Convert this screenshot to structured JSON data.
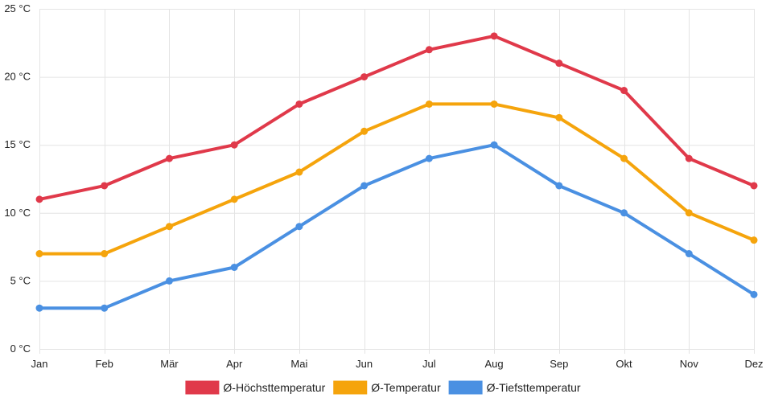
{
  "chart_data": {
    "type": "line",
    "title": "",
    "xlabel": "",
    "ylabel": "",
    "categories": [
      "Jan",
      "Feb",
      "Mär",
      "Apr",
      "Mai",
      "Jun",
      "Jul",
      "Aug",
      "Sep",
      "Okt",
      "Nov",
      "Dez"
    ],
    "ylim": [
      0,
      25
    ],
    "yticks": [
      0,
      5,
      10,
      15,
      20,
      25
    ],
    "y_unit": " °C",
    "grid": true,
    "legend_position": "bottom",
    "series": [
      {
        "name": "Ø-Höchsttemperatur",
        "color": "#e0394a",
        "values": [
          11,
          12,
          14,
          15,
          18,
          20,
          22,
          23,
          21,
          19,
          14,
          12
        ]
      },
      {
        "name": "Ø-Temperatur",
        "color": "#f5a40c",
        "values": [
          7,
          7,
          9,
          11,
          13,
          16,
          18,
          18,
          17,
          14,
          10,
          8
        ]
      },
      {
        "name": "Ø-Tiefsttemperatur",
        "color": "#4a90e2",
        "values": [
          3,
          3,
          5,
          6,
          9,
          12,
          14,
          15,
          12,
          10,
          7,
          4
        ]
      }
    ]
  }
}
